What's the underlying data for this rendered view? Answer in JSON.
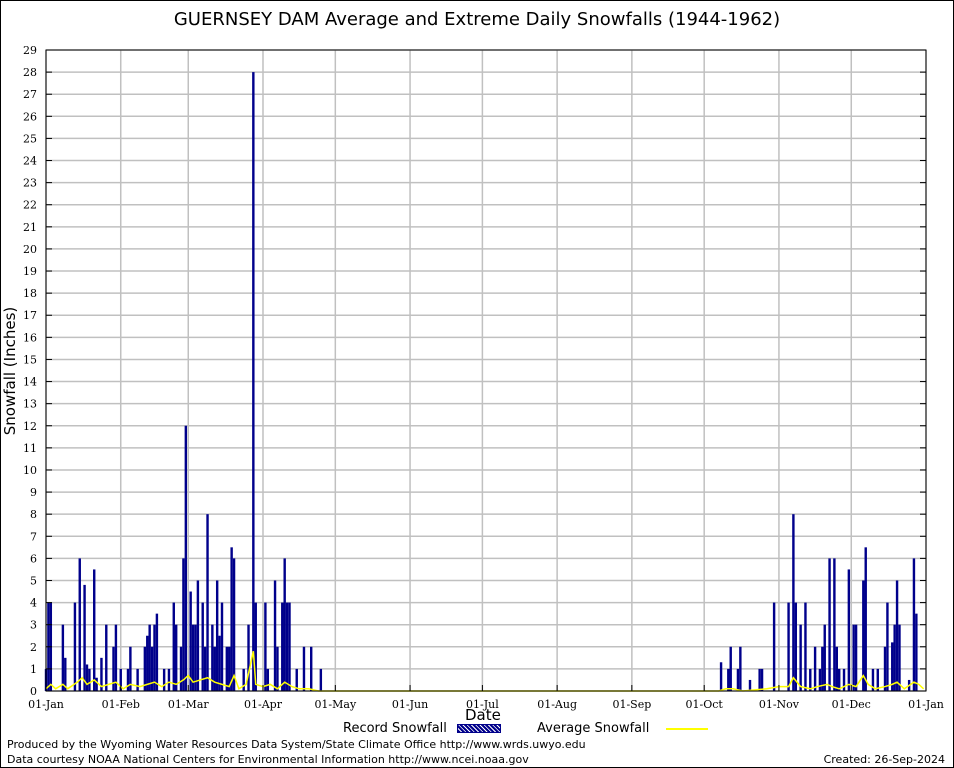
{
  "chart_data": {
    "type": "bar",
    "title": "GUERNSEY DAM Average and Extreme Daily Snowfalls (1944-1962)",
    "xlabel": "Date",
    "ylabel": "Snowfall (Inches)",
    "ylim": [
      0,
      29
    ],
    "yticks": [
      0,
      1,
      2,
      3,
      4,
      5,
      6,
      7,
      8,
      9,
      10,
      11,
      12,
      13,
      14,
      15,
      16,
      17,
      18,
      19,
      20,
      21,
      22,
      23,
      24,
      25,
      26,
      27,
      28,
      29
    ],
    "xticks": [
      "01-Jan",
      "01-Feb",
      "01-Mar",
      "01-Apr",
      "01-May",
      "01-Jun",
      "01-Jul",
      "01-Aug",
      "01-Sep",
      "01-Oct",
      "01-Nov",
      "01-Dec",
      "01-Jan"
    ],
    "xtick_days": [
      1,
      32,
      60,
      91,
      121,
      152,
      182,
      213,
      244,
      274,
      305,
      335,
      366
    ],
    "grid": true,
    "legend_placement": "bottom",
    "series": [
      {
        "name": "Record Snowfall",
        "color": "#00008b",
        "points": [
          [
            1,
            1
          ],
          [
            2,
            4
          ],
          [
            3,
            4
          ],
          [
            8,
            3
          ],
          [
            9,
            1.5
          ],
          [
            13,
            4
          ],
          [
            15,
            6
          ],
          [
            17,
            4.8
          ],
          [
            18,
            1.2
          ],
          [
            19,
            1
          ],
          [
            21,
            5.5
          ],
          [
            22,
            0.6
          ],
          [
            24,
            1.5
          ],
          [
            26,
            3
          ],
          [
            29,
            2
          ],
          [
            30,
            3
          ],
          [
            32,
            1
          ],
          [
            35,
            1
          ],
          [
            36,
            2
          ],
          [
            39,
            1
          ],
          [
            42,
            2
          ],
          [
            43,
            2.5
          ],
          [
            44,
            3
          ],
          [
            45,
            2
          ],
          [
            46,
            3
          ],
          [
            47,
            3.5
          ],
          [
            50,
            1
          ],
          [
            52,
            1
          ],
          [
            54,
            4
          ],
          [
            55,
            3
          ],
          [
            57,
            2
          ],
          [
            58,
            6
          ],
          [
            59,
            12
          ],
          [
            61,
            4.5
          ],
          [
            62,
            3
          ],
          [
            63,
            3
          ],
          [
            64,
            5
          ],
          [
            66,
            4
          ],
          [
            67,
            2
          ],
          [
            68,
            8
          ],
          [
            70,
            3
          ],
          [
            71,
            2
          ],
          [
            72,
            5
          ],
          [
            73,
            2.5
          ],
          [
            74,
            4
          ],
          [
            76,
            2
          ],
          [
            77,
            2
          ],
          [
            78,
            6.5
          ],
          [
            79,
            6
          ],
          [
            83,
            1
          ],
          [
            85,
            3
          ],
          [
            87,
            28
          ],
          [
            88,
            4
          ],
          [
            92,
            4
          ],
          [
            93,
            1
          ],
          [
            96,
            5
          ],
          [
            97,
            2
          ],
          [
            99,
            4
          ],
          [
            100,
            6
          ],
          [
            101,
            4
          ],
          [
            102,
            4
          ],
          [
            105,
            1
          ],
          [
            108,
            2
          ],
          [
            111,
            2
          ],
          [
            115,
            1
          ],
          [
            281,
            1.3
          ],
          [
            284,
            1
          ],
          [
            285,
            2
          ],
          [
            288,
            1
          ],
          [
            289,
            2
          ],
          [
            293,
            0.5
          ],
          [
            297,
            1
          ],
          [
            298,
            1
          ],
          [
            303,
            4
          ],
          [
            309,
            4
          ],
          [
            311,
            8
          ],
          [
            312,
            4
          ],
          [
            314,
            3
          ],
          [
            316,
            4
          ],
          [
            318,
            1
          ],
          [
            320,
            2
          ],
          [
            322,
            1
          ],
          [
            323,
            2
          ],
          [
            324,
            3
          ],
          [
            326,
            6
          ],
          [
            328,
            6
          ],
          [
            329,
            2
          ],
          [
            330,
            1
          ],
          [
            332,
            1
          ],
          [
            334,
            5.5
          ],
          [
            336,
            3
          ],
          [
            337,
            3
          ],
          [
            340,
            5
          ],
          [
            341,
            6.5
          ],
          [
            344,
            1
          ],
          [
            346,
            1
          ],
          [
            349,
            2
          ],
          [
            350,
            4
          ],
          [
            352,
            2.2
          ],
          [
            353,
            3
          ],
          [
            354,
            5
          ],
          [
            355,
            3
          ],
          [
            359,
            0.5
          ],
          [
            361,
            6
          ],
          [
            362,
            3.5
          ]
        ]
      },
      {
        "name": "Average Snowfall",
        "color": "#ffff00",
        "points": [
          [
            1,
            0.1
          ],
          [
            3,
            0.3
          ],
          [
            5,
            0.1
          ],
          [
            8,
            0.3
          ],
          [
            10,
            0.1
          ],
          [
            14,
            0.4
          ],
          [
            16,
            0.6
          ],
          [
            18,
            0.3
          ],
          [
            21,
            0.5
          ],
          [
            24,
            0.2
          ],
          [
            27,
            0.3
          ],
          [
            30,
            0.4
          ],
          [
            33,
            0.1
          ],
          [
            36,
            0.3
          ],
          [
            40,
            0.2
          ],
          [
            43,
            0.3
          ],
          [
            46,
            0.4
          ],
          [
            49,
            0.2
          ],
          [
            52,
            0.4
          ],
          [
            55,
            0.3
          ],
          [
            58,
            0.5
          ],
          [
            60,
            0.7
          ],
          [
            62,
            0.4
          ],
          [
            65,
            0.5
          ],
          [
            68,
            0.6
          ],
          [
            71,
            0.4
          ],
          [
            74,
            0.3
          ],
          [
            77,
            0.2
          ],
          [
            79,
            0.7
          ],
          [
            81,
            0.1
          ],
          [
            84,
            0.3
          ],
          [
            87,
            1.8
          ],
          [
            88,
            0.3
          ],
          [
            91,
            0.2
          ],
          [
            94,
            0.3
          ],
          [
            97,
            0.1
          ],
          [
            100,
            0.4
          ],
          [
            103,
            0.2
          ],
          [
            106,
            0.1
          ],
          [
            110,
            0.1
          ],
          [
            114,
            0
          ],
          [
            120,
            0
          ],
          [
            280,
            0
          ],
          [
            283,
            0.1
          ],
          [
            286,
            0.1
          ],
          [
            290,
            0
          ],
          [
            300,
            0.1
          ],
          [
            305,
            0.2
          ],
          [
            309,
            0.2
          ],
          [
            311,
            0.6
          ],
          [
            314,
            0.2
          ],
          [
            318,
            0.1
          ],
          [
            321,
            0.2
          ],
          [
            325,
            0.3
          ],
          [
            327,
            0.2
          ],
          [
            330,
            0.1
          ],
          [
            334,
            0.3
          ],
          [
            337,
            0.2
          ],
          [
            340,
            0.7
          ],
          [
            342,
            0.3
          ],
          [
            345,
            0.1
          ],
          [
            349,
            0.2
          ],
          [
            352,
            0.3
          ],
          [
            354,
            0.4
          ],
          [
            357,
            0.1
          ],
          [
            361,
            0.4
          ],
          [
            363,
            0.3
          ],
          [
            365,
            0.1
          ]
        ]
      }
    ]
  },
  "legend": {
    "record_label": "Record Snowfall",
    "average_label": "Average Snowfall"
  },
  "footer": {
    "produced_by": "Produced by the Wyoming Water Resources Data System/State Climate Office http://www.wrds.uwyo.edu",
    "data_courtesy": "Data courtesy NOAA National Centers for Environmental Information http://www.ncei.noaa.gov",
    "created": "Created:  26-Sep-2024"
  }
}
